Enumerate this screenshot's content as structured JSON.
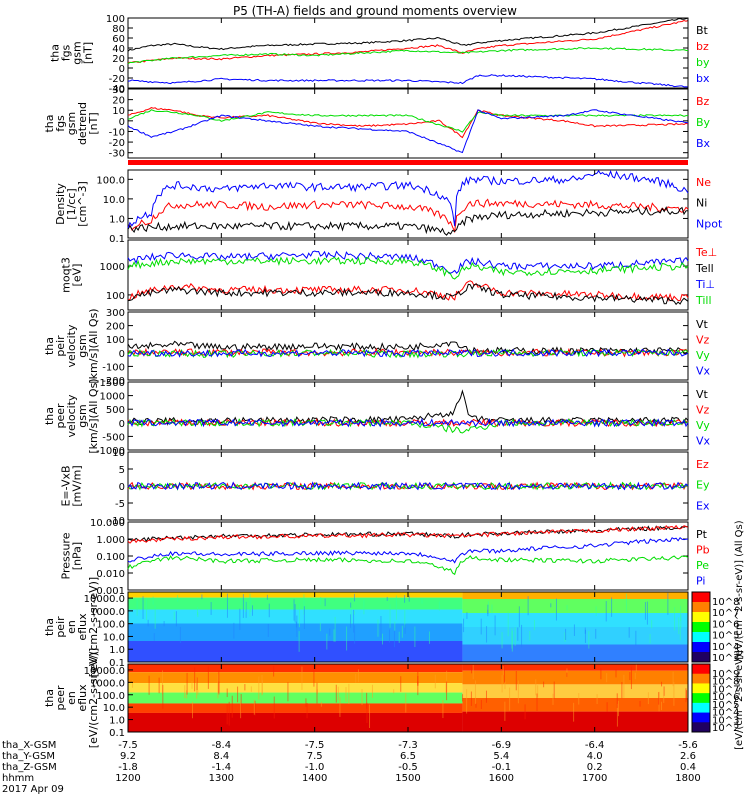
{
  "title": "P5 (TH-A) fields and ground moments overview",
  "date_label": "2017 Apr 09",
  "colorbar_label": "[eV/(cm^2-s-sr-eV)]",
  "colorbar_label2": "[eV/(cm^2-s-sr-eV)] (All Qs)",
  "colors": {
    "black": "#000000",
    "red": "#ff0000",
    "green": "#00dd00",
    "blue": "#0000ff"
  },
  "chart_data": [
    {
      "type": "line",
      "ylabel": [
        "tha",
        "fgs",
        "gsm",
        "[nT]"
      ],
      "ylim": [
        -40,
        100
      ],
      "ticks": [
        "100",
        "80",
        "60",
        "40",
        "20",
        "0",
        "-20",
        "-40"
      ],
      "series": [
        {
          "name": "Bt",
          "color": "#000000",
          "x": [
            1200,
            1215,
            1230,
            1245,
            1300,
            1315,
            1330,
            1400,
            1430,
            1500,
            1520,
            1535,
            1545,
            1600,
            1700,
            1800
          ],
          "y": [
            35,
            45,
            48,
            42,
            38,
            42,
            45,
            48,
            50,
            55,
            60,
            45,
            50,
            55,
            70,
            100
          ]
        },
        {
          "name": "bz",
          "color": "#ff0000",
          "x": [
            1200,
            1230,
            1300,
            1330,
            1400,
            1430,
            1500,
            1520,
            1535,
            1545,
            1600,
            1700,
            1800
          ],
          "y": [
            10,
            20,
            18,
            25,
            28,
            32,
            40,
            45,
            30,
            38,
            45,
            58,
            95
          ]
        },
        {
          "name": "by",
          "color": "#00dd00",
          "x": [
            1200,
            1230,
            1300,
            1330,
            1400,
            1500,
            1535,
            1600,
            1700,
            1800
          ],
          "y": [
            10,
            20,
            25,
            28,
            25,
            35,
            30,
            35,
            40,
            35
          ]
        },
        {
          "name": "bx",
          "color": "#0000ff",
          "x": [
            1200,
            1230,
            1300,
            1330,
            1400,
            1500,
            1535,
            1545,
            1600,
            1700,
            1800
          ],
          "y": [
            -25,
            -30,
            -22,
            -25,
            -25,
            -25,
            -30,
            -15,
            -15,
            -22,
            -38
          ]
        }
      ]
    },
    {
      "type": "line",
      "ylabel": [
        "tha",
        "fgs",
        "gsm",
        "detrend",
        "[nT]"
      ],
      "ylim": [
        -35,
        30
      ],
      "ticks": [
        "30",
        "20",
        "10",
        "0",
        "-10",
        "-20",
        "-30"
      ],
      "series": [
        {
          "name": "Bz",
          "color": "#ff0000",
          "x": [
            1200,
            1215,
            1230,
            1245,
            1300,
            1330,
            1400,
            1430,
            1500,
            1520,
            1535,
            1545,
            1600,
            1640,
            1700,
            1800
          ],
          "y": [
            5,
            12,
            10,
            5,
            3,
            5,
            -2,
            -5,
            -3,
            0,
            -15,
            10,
            5,
            0,
            -5,
            -3
          ]
        },
        {
          "name": "By",
          "color": "#00dd00",
          "x": [
            1200,
            1215,
            1230,
            1245,
            1300,
            1330,
            1400,
            1500,
            1535,
            1545,
            1600,
            1700,
            1800
          ],
          "y": [
            2,
            10,
            8,
            5,
            0,
            8,
            5,
            5,
            -10,
            8,
            5,
            5,
            5
          ]
        },
        {
          "name": "Bx",
          "color": "#0000ff",
          "x": [
            1200,
            1215,
            1230,
            1300,
            1330,
            1400,
            1500,
            1535,
            1545,
            1600,
            1640,
            1700,
            1800
          ],
          "y": [
            -5,
            -15,
            -10,
            5,
            0,
            -5,
            -10,
            -30,
            10,
            2,
            5,
            10,
            -2
          ]
        }
      ]
    },
    {
      "type": "line",
      "ylabel": [
        "Density",
        "[1/cc]",
        "[cm^-3]"
      ],
      "ylog": true,
      "ylim": [
        0.1,
        300
      ],
      "ticks": [
        "100.0",
        "10.0",
        "1.0",
        "0.1"
      ],
      "series": [
        {
          "name": "Ne",
          "color": "#ff0000",
          "x": [
            1200,
            1215,
            1230,
            1300,
            1330,
            1400,
            1430,
            1500,
            1530,
            1540,
            1600,
            1700,
            1800
          ],
          "y": [
            0.3,
            0.8,
            5,
            5,
            4,
            5,
            5,
            4,
            0.3,
            6,
            6,
            5,
            3
          ]
        },
        {
          "name": "Ni",
          "color": "#000000",
          "x": [
            1200,
            1230,
            1300,
            1400,
            1500,
            1530,
            1540,
            1600,
            1700,
            1800
          ],
          "y": [
            0.3,
            0.4,
            0.4,
            0.4,
            0.4,
            0.15,
            1,
            1.5,
            2,
            2.5
          ]
        },
        {
          "name": "Npot",
          "color": "#0000ff",
          "x": [
            1200,
            1215,
            1230,
            1300,
            1330,
            1400,
            1430,
            1500,
            1530,
            1540,
            1600,
            1650,
            1700,
            1800
          ],
          "y": [
            0.3,
            2,
            50,
            30,
            50,
            40,
            40,
            50,
            0.3,
            100,
            80,
            100,
            200,
            20
          ]
        }
      ]
    },
    {
      "type": "line",
      "ylabel": [
        "moqt3",
        "[eV]"
      ],
      "ylog": true,
      "ylim": [
        30,
        8000
      ],
      "ticks": [
        "1000",
        "100"
      ],
      "series": [
        {
          "name": "Te⊥",
          "color": "#ff0000",
          "x": [
            1200,
            1230,
            1300,
            1400,
            1500,
            1530,
            1540,
            1600,
            1700,
            1800
          ],
          "y": [
            80,
            200,
            150,
            150,
            150,
            80,
            250,
            120,
            100,
            80
          ]
        },
        {
          "name": "Tell",
          "color": "#000000",
          "x": [
            1200,
            1230,
            1300,
            1400,
            1500,
            1530,
            1540,
            1600,
            1700,
            1800
          ],
          "y": [
            80,
            150,
            120,
            120,
            120,
            80,
            200,
            100,
            80,
            60
          ]
        },
        {
          "name": "Ti⊥",
          "color": "#0000ff",
          "x": [
            1200,
            1230,
            1300,
            1400,
            1500,
            1530,
            1540,
            1600,
            1700,
            1800
          ],
          "y": [
            1500,
            2500,
            2000,
            2500,
            2000,
            600,
            1500,
            1000,
            1000,
            1500
          ]
        },
        {
          "name": "Till",
          "color": "#00dd00",
          "x": [
            1200,
            1230,
            1300,
            1400,
            1500,
            1530,
            1540,
            1600,
            1700,
            1800
          ],
          "y": [
            1000,
            1500,
            1500,
            1500,
            1500,
            400,
            1000,
            600,
            700,
            1000
          ]
        }
      ]
    },
    {
      "type": "line",
      "ylabel": [
        "tha",
        "peir",
        "velocity",
        "gsm",
        "[km/s](All Qs)"
      ],
      "ylim": [
        -200,
        300
      ],
      "ticks": [
        "300",
        "200",
        "100",
        "0",
        "-100",
        "-200"
      ],
      "series": [
        {
          "name": "Vt",
          "color": "#000000",
          "x": [
            1200,
            1230,
            1300,
            1400,
            1500,
            1530,
            1540,
            1600,
            1700,
            1800
          ],
          "y": [
            40,
            60,
            40,
            50,
            40,
            80,
            20,
            15,
            15,
            15
          ]
        },
        {
          "name": "Vz",
          "color": "#ff0000",
          "x": [
            1200,
            1300,
            1400,
            1500,
            1600,
            1700,
            1800
          ],
          "y": [
            0,
            5,
            0,
            5,
            0,
            0,
            0
          ]
        },
        {
          "name": "Vy",
          "color": "#00dd00",
          "x": [
            1200,
            1300,
            1400,
            1500,
            1600,
            1700,
            1800
          ],
          "y": [
            0,
            -10,
            0,
            -10,
            0,
            0,
            0
          ]
        },
        {
          "name": "Vx",
          "color": "#0000ff",
          "x": [
            1200,
            1300,
            1400,
            1500,
            1600,
            1700,
            1800
          ],
          "y": [
            0,
            -5,
            0,
            -5,
            0,
            0,
            0
          ]
        }
      ]
    },
    {
      "type": "line",
      "ylabel": [
        "tha",
        "peer",
        "velocity",
        "gsm",
        "[km/s](All Qs)"
      ],
      "ylim": [
        -1000,
        1500
      ],
      "ticks": [
        "1500",
        "1000",
        "500",
        "0",
        "-500",
        "-1000"
      ],
      "series": [
        {
          "name": "Vt",
          "color": "#000000",
          "x": [
            1200,
            1300,
            1400,
            1500,
            1530,
            1535,
            1540,
            1600,
            1700,
            1800
          ],
          "y": [
            50,
            80,
            100,
            120,
            400,
            1100,
            150,
            80,
            80,
            80
          ]
        },
        {
          "name": "Vz",
          "color": "#ff0000",
          "x": [
            1200,
            1300,
            1400,
            1500,
            1600,
            1700,
            1800
          ],
          "y": [
            0,
            0,
            0,
            0,
            0,
            0,
            0
          ]
        },
        {
          "name": "Vy",
          "color": "#00dd00",
          "x": [
            1200,
            1300,
            1400,
            1500,
            1535,
            1600,
            1700,
            1800
          ],
          "y": [
            0,
            0,
            0,
            0,
            -300,
            0,
            0,
            0
          ]
        },
        {
          "name": "Vx",
          "color": "#0000ff",
          "x": [
            1200,
            1300,
            1400,
            1500,
            1600,
            1700,
            1800
          ],
          "y": [
            0,
            0,
            0,
            0,
            0,
            0,
            0
          ]
        }
      ]
    },
    {
      "type": "line",
      "ylabel": [
        "E=-VxB",
        "[mV/m]"
      ],
      "ylim": [
        -10,
        10
      ],
      "ticks": [
        "10",
        "5",
        "0",
        "-5",
        "-10"
      ],
      "series": [
        {
          "name": "Ez",
          "color": "#ff0000",
          "x": [
            1200,
            1230,
            1300,
            1400,
            1500,
            1535,
            1600,
            1700,
            1800
          ],
          "y": [
            0,
            0,
            0,
            0,
            0,
            0,
            0,
            0,
            0
          ]
        },
        {
          "name": "Ey",
          "color": "#00dd00",
          "x": [
            1200,
            1300,
            1400,
            1500,
            1600,
            1700,
            1800
          ],
          "y": [
            0,
            0,
            0,
            0,
            0,
            0,
            0
          ]
        },
        {
          "name": "Ex",
          "color": "#0000ff",
          "x": [
            1200,
            1300,
            1400,
            1500,
            1600,
            1700,
            1800
          ],
          "y": [
            0,
            0,
            0,
            0,
            0,
            0,
            0
          ]
        }
      ]
    },
    {
      "type": "line",
      "ylabel": [
        "Pressure",
        "[nPa]"
      ],
      "ylog": true,
      "ylim": [
        0.001,
        10
      ],
      "ticks": [
        "10.000",
        "1.000",
        "0.100",
        "0.010",
        "0.001"
      ],
      "series": [
        {
          "name": "Pt",
          "color": "#000000",
          "x": [
            1200,
            1230,
            1300,
            1400,
            1500,
            1530,
            1540,
            1600,
            1700,
            1800
          ],
          "y": [
            0.8,
            1.2,
            1.5,
            1.8,
            2,
            1.5,
            1.8,
            2.2,
            3,
            5
          ]
        },
        {
          "name": "Pb",
          "color": "#ff0000",
          "x": [
            1200,
            1230,
            1300,
            1400,
            1500,
            1530,
            1540,
            1600,
            1700,
            1800
          ],
          "y": [
            0.7,
            1,
            1.3,
            1.5,
            1.8,
            1.5,
            1.6,
            2,
            3,
            5
          ]
        },
        {
          "name": "Pe",
          "color": "#00dd00",
          "x": [
            1200,
            1230,
            1300,
            1400,
            1500,
            1530,
            1540,
            1600,
            1700,
            1800
          ],
          "y": [
            0.02,
            0.08,
            0.05,
            0.06,
            0.05,
            0.01,
            0.08,
            0.06,
            0.05,
            0.08
          ]
        },
        {
          "name": "Pi",
          "color": "#0000ff",
          "x": [
            1200,
            1230,
            1300,
            1400,
            1500,
            1530,
            1540,
            1600,
            1700,
            1800
          ],
          "y": [
            0.05,
            0.15,
            0.12,
            0.15,
            0.15,
            0.05,
            0.2,
            0.2,
            0.4,
            1
          ]
        }
      ]
    },
    {
      "type": "heatmap",
      "ylabel": [
        "tha",
        "peir",
        "en",
        "eflux",
        "[eV/(cm2-s-sr-eV)]"
      ],
      "ylog": true,
      "ticks": [
        "10000.0",
        "1000.0",
        "100.0",
        "10.0",
        "1.0",
        "0.1"
      ],
      "colorbar_ticks": [
        "10^8",
        "10^7",
        "10^6",
        "10^5",
        "10^4",
        "10^3"
      ]
    },
    {
      "type": "heatmap",
      "ylabel": [
        "tha",
        "peer",
        "en",
        "eflux",
        "[eV/(cm2-s-sr-eV)]"
      ],
      "ylog": true,
      "ticks": [
        "10000.0",
        "1000.0",
        "100.0",
        "10.0",
        "1.0",
        "0.1"
      ],
      "colorbar_ticks": [
        "10^9",
        "10^8",
        "10^7",
        "10^6",
        "10^5",
        "10^4",
        "10^3",
        "10^2"
      ]
    }
  ],
  "x_axis": {
    "rows": [
      {
        "label": "tha_X-GSM",
        "values": [
          "-7.5",
          "-8.4",
          "-7.5",
          "-7.3",
          "-6.9",
          "-6.4",
          "-5.6"
        ]
      },
      {
        "label": "tha_Y-GSM",
        "values": [
          "9.2",
          "8.4",
          "7.5",
          "6.5",
          "5.4",
          "4.0",
          "2.6"
        ]
      },
      {
        "label": "tha_Z-GSM",
        "values": [
          "-1.8",
          "-1.4",
          "-1.0",
          "-0.5",
          "-0.1",
          "0.2",
          "0.4"
        ]
      },
      {
        "label": "hhmm",
        "values": [
          "1200",
          "1300",
          "1400",
          "1500",
          "1600",
          "1700",
          "1800"
        ]
      }
    ]
  }
}
